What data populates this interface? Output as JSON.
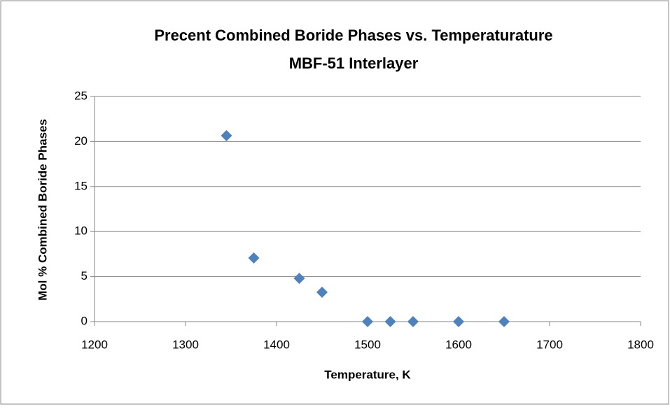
{
  "chart_data": {
    "type": "scatter",
    "title": "Precent Combined Boride Phases vs. Temperaturature",
    "subtitle": "MBF-51 Interlayer",
    "x_label": "Temperature, K",
    "y_label": "Mol % Combined Boride Phases",
    "series": [
      {
        "name": "Mol % Combined Boride Phases",
        "color": "#4f81bd",
        "x": [
          1345,
          1375,
          1425,
          1450,
          1500,
          1525,
          1550,
          1600,
          1650
        ],
        "values": [
          20.65,
          7.07,
          4.8,
          3.26,
          0,
          0,
          0,
          0,
          0
        ]
      }
    ],
    "xlim": [
      1200,
      1800
    ],
    "xticks": [
      1200,
      1300,
      1400,
      1500,
      1600,
      1700,
      1800
    ],
    "ylim": [
      0,
      25
    ],
    "yticks": [
      0,
      5,
      10,
      15,
      20,
      25
    ],
    "grid": true
  }
}
